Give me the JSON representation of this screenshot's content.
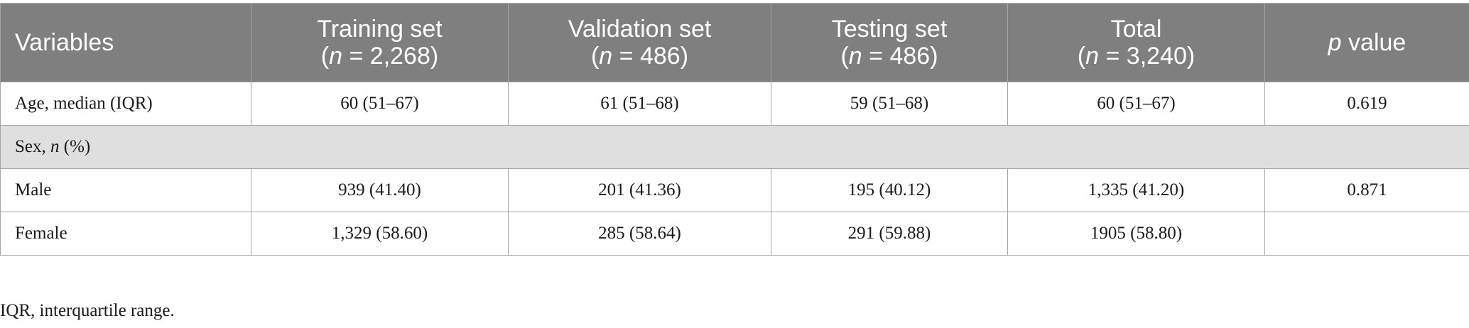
{
  "table": {
    "headers": [
      {
        "line1": "Variables"
      },
      {
        "line1": "Training set",
        "n_label": "n",
        "n_value": " = 2,268)"
      },
      {
        "line1": "Validation set",
        "n_label": "n",
        "n_value": " = 486)"
      },
      {
        "line1": "Testing set",
        "n_label": "n",
        "n_value": " = 486)"
      },
      {
        "line1": "Total",
        "n_label": "n",
        "n_value": " = 3,240)"
      },
      {
        "italic": "p",
        "rest": " value"
      }
    ],
    "rows": [
      {
        "label": "Age, median (IQR)",
        "cells": [
          "60 (51–67)",
          "61 (51–68)",
          "59 (51–68)",
          "60 (51–67)",
          "0.619"
        ]
      },
      {
        "section": true,
        "label_prefix": "Sex, ",
        "label_italic": "n",
        "label_suffix": " (%)"
      },
      {
        "label": "Male",
        "cells": [
          "939 (41.40)",
          "201 (41.36)",
          "195 (40.12)",
          "1,335 (41.20)",
          "0.871"
        ]
      },
      {
        "label": "Female",
        "cells": [
          "1,329 (58.60)",
          "285 (58.64)",
          "291 (59.88)",
          "1905 (58.80)",
          ""
        ]
      }
    ]
  },
  "footnote": "IQR, interquartile range."
}
